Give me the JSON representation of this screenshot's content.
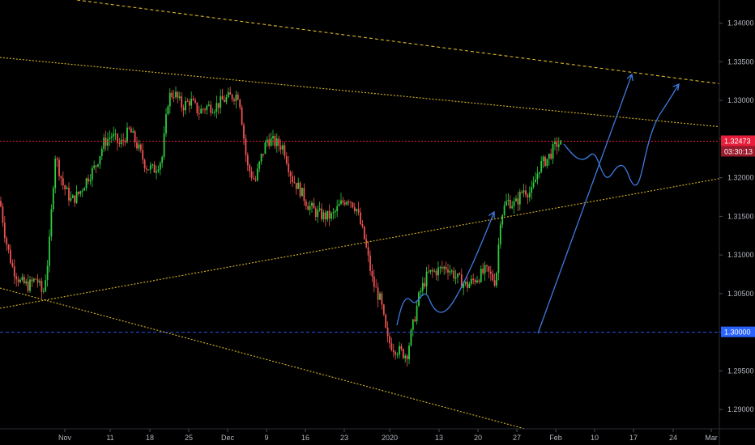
{
  "chart_data": {
    "type": "candlestick",
    "y_ticks": [
      "1.34000",
      "1.33500",
      "1.33000",
      "1.32500",
      "1.32000",
      "1.31500",
      "1.31000",
      "1.30500",
      "1.30000",
      "1.29500",
      "1.29000"
    ],
    "ylim": [
      1.2875,
      1.343
    ],
    "x_ticks": [
      "Nov",
      "11",
      "18",
      "25",
      "Dec",
      "9",
      "16",
      "23",
      "2020",
      "13",
      "20",
      "27",
      "Feb",
      "10",
      "17",
      "24",
      "Mar"
    ],
    "last_price": {
      "value": 1.32473,
      "label": "1.32473",
      "countdown": "03:30:13",
      "color": "#e91e3c"
    },
    "marked_level": {
      "value": 1.3,
      "label": "1.30000",
      "color": "#2962ff"
    },
    "colors": {
      "up": "#26a69a",
      "up_bright": "#2ecc40",
      "down": "#ef5350",
      "trend": "#e6c229",
      "projection": "#3d7be0",
      "grid": "#1c1f26",
      "axis_text": "#b2b5be"
    },
    "candle_path": [
      [
        0,
        1.317
      ],
      [
        7,
        1.312
      ],
      [
        15,
        1.3085
      ],
      [
        25,
        1.3065
      ],
      [
        35,
        1.306
      ],
      [
        45,
        1.307
      ],
      [
        53,
        1.3048
      ],
      [
        60,
        1.31
      ],
      [
        68,
        1.323
      ],
      [
        78,
        1.319
      ],
      [
        88,
        1.317
      ],
      [
        98,
        1.318
      ],
      [
        108,
        1.32
      ],
      [
        118,
        1.3215
      ],
      [
        128,
        1.3245
      ],
      [
        138,
        1.3255
      ],
      [
        148,
        1.3242
      ],
      [
        160,
        1.3262
      ],
      [
        170,
        1.324
      ],
      [
        180,
        1.3215
      ],
      [
        190,
        1.321
      ],
      [
        200,
        1.3225
      ],
      [
        208,
        1.3305
      ],
      [
        215,
        1.331
      ],
      [
        225,
        1.3292
      ],
      [
        235,
        1.33
      ],
      [
        245,
        1.3285
      ],
      [
        255,
        1.3292
      ],
      [
        265,
        1.3292
      ],
      [
        275,
        1.33
      ],
      [
        285,
        1.3305
      ],
      [
        295,
        1.3308
      ],
      [
        305,
        1.3215
      ],
      [
        315,
        1.3195
      ],
      [
        322,
        1.3225
      ],
      [
        330,
        1.325
      ],
      [
        340,
        1.3245
      ],
      [
        350,
        1.324
      ],
      [
        360,
        1.32
      ],
      [
        370,
        1.3185
      ],
      [
        380,
        1.3165
      ],
      [
        390,
        1.3155
      ],
      [
        400,
        1.315
      ],
      [
        410,
        1.315
      ],
      [
        420,
        1.3165
      ],
      [
        430,
        1.3175
      ],
      [
        440,
        1.316
      ],
      [
        450,
        1.312
      ],
      [
        460,
        1.3065
      ],
      [
        470,
        1.304
      ],
      [
        478,
        1.299
      ],
      [
        486,
        1.298
      ],
      [
        494,
        1.2975
      ],
      [
        502,
        1.297
      ],
      [
        510,
        1.301
      ],
      [
        518,
        1.305
      ],
      [
        528,
        1.3075
      ],
      [
        540,
        1.308
      ],
      [
        552,
        1.3085
      ],
      [
        564,
        1.307
      ],
      [
        576,
        1.306
      ],
      [
        588,
        1.307
      ],
      [
        600,
        1.308
      ],
      [
        612,
        1.3065
      ],
      [
        618,
        1.315
      ],
      [
        626,
        1.317
      ],
      [
        636,
        1.3165
      ],
      [
        646,
        1.3185
      ],
      [
        656,
        1.318
      ],
      [
        666,
        1.3215
      ],
      [
        676,
        1.3225
      ],
      [
        688,
        1.3245
      ],
      [
        694,
        1.3242
      ]
    ]
  },
  "trend_lines": [
    {
      "name": "upper-dashed",
      "dash": "4,3",
      "points": [
        [
          1.34,
          1.346
        ],
        [
          1.335,
          1.332
        ]
      ]
    }
  ]
}
